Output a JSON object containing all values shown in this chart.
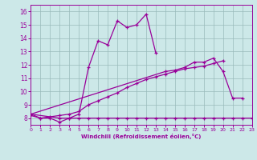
{
  "title": "",
  "xlabel": "Windchill (Refroidissement éolien,°C)",
  "xlim": [
    0,
    23
  ],
  "ylim": [
    7.5,
    16.5
  ],
  "ytick_labels": [
    "8",
    "9",
    "10",
    "11",
    "12",
    "13",
    "14",
    "15",
    "16"
  ],
  "ytick_vals": [
    8,
    9,
    10,
    11,
    12,
    13,
    14,
    15,
    16
  ],
  "xtick_vals": [
    0,
    1,
    2,
    3,
    4,
    5,
    6,
    7,
    8,
    9,
    10,
    11,
    12,
    13,
    14,
    15,
    16,
    17,
    18,
    19,
    20,
    21,
    22,
    23
  ],
  "bg_color": "#cce8e8",
  "line_color": "#990099",
  "grid_color": "#99bbbb",
  "line1_x": [
    0,
    1,
    2,
    3,
    4,
    5,
    6,
    7,
    8,
    9,
    10,
    11,
    12,
    13,
    14,
    15,
    16,
    17,
    18,
    19,
    20,
    21,
    22,
    23
  ],
  "line1_y": [
    8.2,
    8.0,
    8.0,
    7.7,
    8.0,
    8.0,
    8.0,
    8.0,
    8.0,
    8.0,
    8.0,
    8.0,
    8.0,
    8.0,
    8.0,
    8.0,
    8.0,
    8.0,
    8.0,
    8.0,
    8.0,
    8.0,
    8.0,
    8.0
  ],
  "line2_x": [
    0,
    1,
    2,
    3,
    4,
    5,
    6,
    7,
    8,
    9,
    10,
    11,
    12,
    13,
    14,
    15,
    16,
    17,
    18,
    19,
    20
  ],
  "line2_y": [
    8.3,
    8.0,
    8.1,
    8.2,
    8.3,
    8.5,
    9.0,
    9.3,
    9.6,
    9.9,
    10.3,
    10.6,
    10.9,
    11.1,
    11.3,
    11.5,
    11.7,
    11.8,
    11.9,
    12.1,
    12.3
  ],
  "line3_x": [
    0,
    3,
    4,
    5,
    6,
    7,
    8,
    9,
    10,
    11,
    12,
    13
  ],
  "line3_y": [
    8.3,
    8.0,
    8.0,
    8.3,
    11.8,
    13.8,
    13.5,
    15.3,
    14.8,
    15.0,
    15.8,
    12.9
  ],
  "line4_x": [
    0,
    14,
    15,
    16,
    17,
    18,
    19,
    20,
    21,
    22
  ],
  "line4_y": [
    8.3,
    11.5,
    11.6,
    11.8,
    12.2,
    12.2,
    12.5,
    11.5,
    9.5,
    9.5
  ]
}
